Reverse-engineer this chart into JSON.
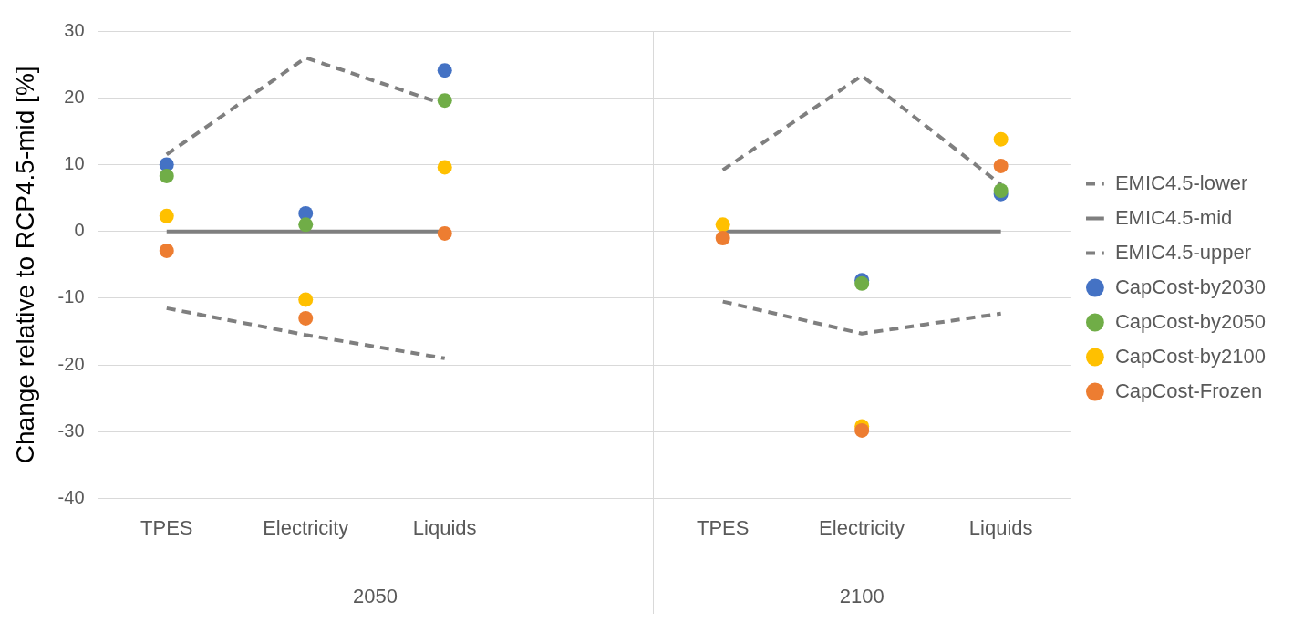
{
  "chart_data": {
    "type": "line",
    "ylabel": "Change relative to RCP4.5-mid [%]",
    "categories": [
      "TPES",
      "Electricity",
      "Liquids",
      null,
      "TPES",
      "Electricity",
      "Liquids"
    ],
    "annotations": [
      "2050",
      "2100"
    ],
    "series": [
      {
        "name": "EMIC4.5-lower",
        "type": "line",
        "line_style": "dashed",
        "marker": "none",
        "color": "#7f7f7f",
        "values": [
          -11.5,
          -15.5,
          -19,
          null,
          -10.5,
          -15.3,
          -12.3
        ]
      },
      {
        "name": "EMIC4.5-mid",
        "type": "line",
        "line_style": "solid",
        "marker": "none",
        "color": "#7f7f7f",
        "values": [
          0,
          0,
          0,
          null,
          0,
          0,
          0
        ]
      },
      {
        "name": "EMIC4.5-upper",
        "type": "line",
        "line_style": "dashed",
        "marker": "none",
        "color": "#7f7f7f",
        "values": [
          11.5,
          26,
          19,
          null,
          9.2,
          23.3,
          7
        ]
      },
      {
        "name": "CapCost-by2030",
        "type": "scatter",
        "marker": "circle",
        "color": "#4472c4",
        "values": [
          10,
          2.7,
          24.1,
          null,
          null,
          -7.3,
          5.6
        ]
      },
      {
        "name": "CapCost-by2050",
        "type": "scatter",
        "marker": "circle",
        "color": "#70ad47",
        "values": [
          8.3,
          1,
          19.6,
          null,
          null,
          -7.8,
          6.1
        ]
      },
      {
        "name": "CapCost-by2100",
        "type": "scatter",
        "marker": "circle",
        "color": "#ffc000",
        "values": [
          2.3,
          -10.2,
          9.6,
          null,
          1,
          -29.2,
          13.8
        ]
      },
      {
        "name": "CapCost-Frozen",
        "type": "scatter",
        "marker": "circle",
        "color": "#ed7d31",
        "values": [
          -2.9,
          -13,
          -0.3,
          null,
          -1,
          -29.8,
          9.8
        ]
      }
    ],
    "ylim": [
      -40,
      30
    ],
    "yticks": [
      -40,
      -30,
      -20,
      -10,
      0,
      10,
      20,
      30
    ],
    "grid": "y",
    "legend": "right"
  }
}
